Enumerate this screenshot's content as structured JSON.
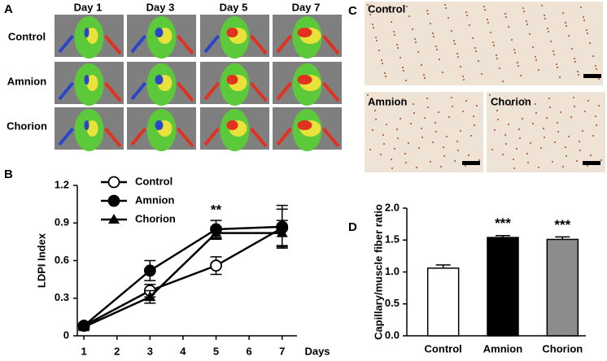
{
  "panels": {
    "A": {
      "label": "A",
      "columns": [
        "Day 1",
        "Day 3",
        "Day 5",
        "Day 7"
      ],
      "rows": [
        "Control",
        "Amnion",
        "Chorion"
      ]
    },
    "C": {
      "label": "C",
      "images": [
        "Control",
        "Amnion",
        "Chorion"
      ]
    }
  },
  "chart_data": [
    {
      "type": "line",
      "label": "B",
      "ylabel": "LDPI Index",
      "xlabel": "Days",
      "x": [
        1,
        3,
        5,
        7
      ],
      "xlim": [
        0.8,
        7.45
      ],
      "xticks": [
        1,
        2,
        3,
        4,
        5,
        6,
        7
      ],
      "ylim": [
        0,
        1.2
      ],
      "yticks": [
        0,
        0.3,
        0.6,
        0.9,
        1.2
      ],
      "series": [
        {
          "name": "Control",
          "color": "#000000",
          "marker": "circle-open",
          "values": [
            0.08,
            0.36,
            0.56,
            0.86
          ],
          "errors": [
            0.02,
            0.05,
            0.07,
            0.15
          ]
        },
        {
          "name": "Amnion",
          "color": "#000000",
          "marker": "circle",
          "values": [
            0.08,
            0.52,
            0.85,
            0.87
          ],
          "errors": [
            0.02,
            0.08,
            0.07,
            0.17
          ]
        },
        {
          "name": "Chorion",
          "color": "#000000",
          "marker": "triangle",
          "values": [
            0.07,
            0.31,
            0.82,
            0.82
          ],
          "errors": [
            0.02,
            0.05,
            0.05,
            0.1
          ]
        }
      ],
      "annotations": [
        {
          "text": "**",
          "x": 5
        }
      ]
    },
    {
      "type": "bar",
      "label": "D",
      "ylabel": "Capillary/muscle fiber ratio",
      "categories": [
        "Control",
        "Amnion",
        "Chorion"
      ],
      "values": [
        1.06,
        1.54,
        1.51
      ],
      "errors": [
        0.05,
        0.03,
        0.04
      ],
      "colors": [
        "#ffffff",
        "#000000",
        "#8c8c8c"
      ],
      "significance": [
        null,
        "***",
        "***"
      ],
      "ylim": [
        0,
        2.0
      ],
      "yticks": [
        {
          "value": 0,
          "label": "0.0"
        },
        {
          "value": 0.5,
          "label": "0.5"
        },
        {
          "value": 1,
          "label": "1.0"
        },
        {
          "value": 1.5,
          "label": "1.5"
        },
        {
          "value": 2,
          "label": "2.0"
        }
      ]
    }
  ]
}
